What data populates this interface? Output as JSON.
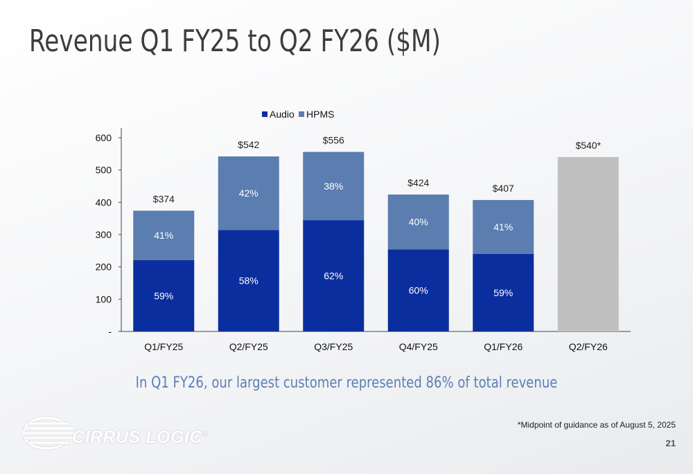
{
  "slide": {
    "title": "Revenue Q1 FY25 to Q2 FY26 ($M)",
    "callout": "In Q1 FY26, our largest customer represented 86% of total revenue",
    "footnote": "*Midpoint of guidance as of August 5, 2025",
    "page_number": "21",
    "logo_text": "CIRRUS LOGIC",
    "logo_mark": "®"
  },
  "chart_data": {
    "type": "bar",
    "stacked": true,
    "categories": [
      "Q1/FY25",
      "Q2/FY25",
      "Q3/FY25",
      "Q4/FY25",
      "Q1/FY26",
      "Q2/FY26"
    ],
    "totals": [
      374,
      542,
      556,
      424,
      407,
      540
    ],
    "total_labels": [
      "$374",
      "$542",
      "$556",
      "$424",
      "$407",
      "$540*"
    ],
    "series": [
      {
        "name": "Audio",
        "color": "#0b2e9e",
        "percent_labels": [
          "59%",
          "58%",
          "62%",
          "60%",
          "59%",
          ""
        ],
        "share": [
          0.59,
          0.58,
          0.62,
          0.6,
          0.59,
          null
        ]
      },
      {
        "name": "HPMS",
        "color": "#5b7db0",
        "percent_labels": [
          "41%",
          "42%",
          "38%",
          "40%",
          "41%",
          ""
        ],
        "share": [
          0.41,
          0.42,
          0.38,
          0.4,
          0.41,
          null
        ]
      }
    ],
    "guidance_color": "#c0c0c0",
    "y_ticks": [
      0,
      100,
      200,
      300,
      400,
      500,
      600
    ],
    "y_tick_labels": [
      "-",
      "100",
      "200",
      "300",
      "400",
      "500",
      "600"
    ],
    "ylim": [
      0,
      630
    ],
    "legend_position": "top-center",
    "grid": false
  }
}
